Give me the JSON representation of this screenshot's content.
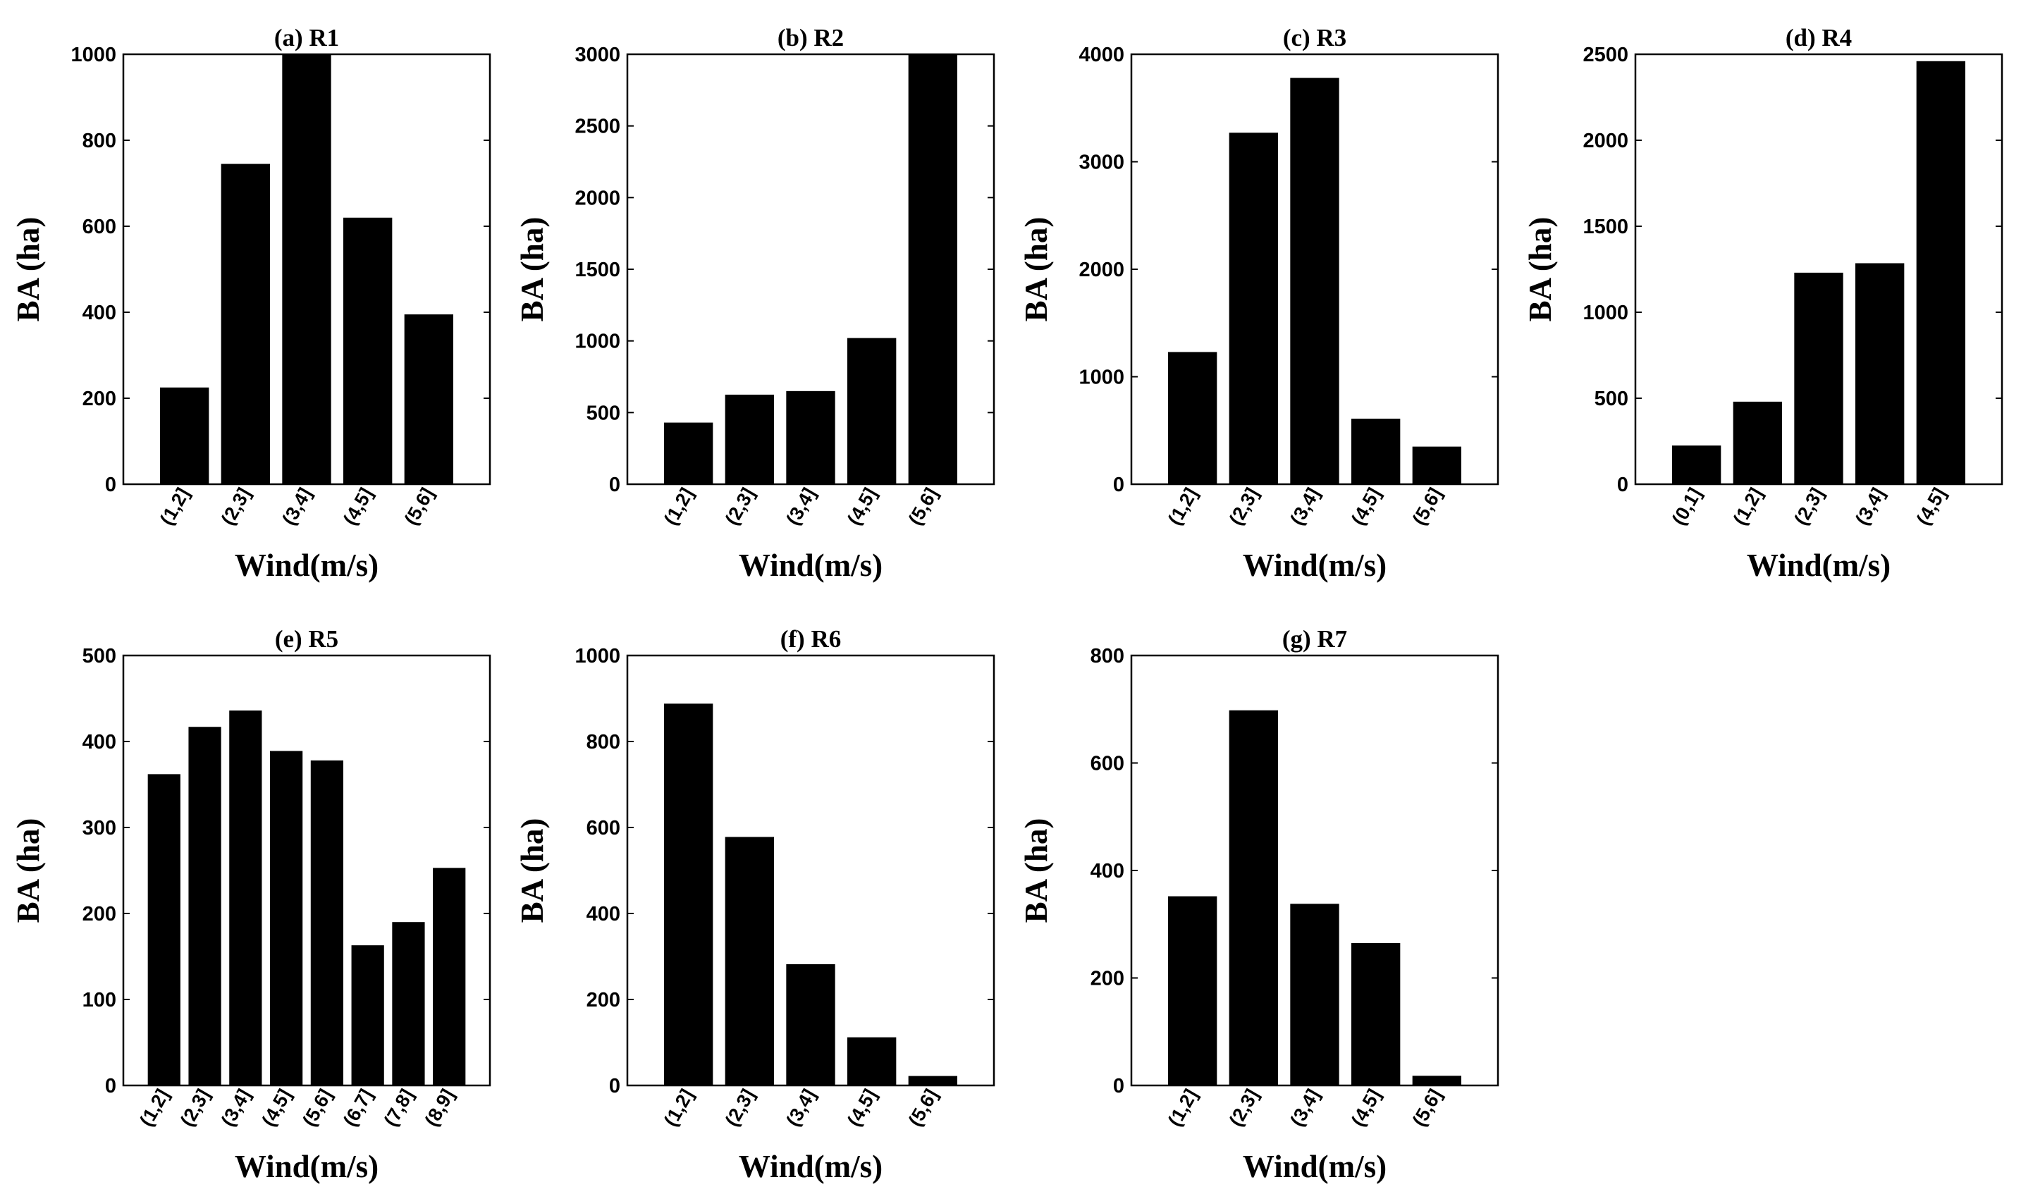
{
  "chart_data": [
    {
      "type": "bar",
      "title": "(a) R1",
      "xlabel": "Wind(m/s)",
      "ylabel": "BA (ha)",
      "ylim": [
        0,
        1000
      ],
      "yticks": [
        0,
        200,
        400,
        600,
        800,
        1000
      ],
      "categories": [
        "(1,2]",
        "(2,3]",
        "(3,4]",
        "(4,5]",
        "(5,6]"
      ],
      "values": [
        225,
        745,
        1000,
        620,
        395
      ]
    },
    {
      "type": "bar",
      "title": "(b) R2",
      "xlabel": "Wind(m/s)",
      "ylabel": "BA (ha)",
      "ylim": [
        0,
        3000
      ],
      "yticks": [
        0,
        500,
        1000,
        1500,
        2000,
        2500,
        3000
      ],
      "categories": [
        "(1,2]",
        "(2,3]",
        "(3,4]",
        "(4,5]",
        "(5,6]"
      ],
      "values": [
        430,
        625,
        650,
        1020,
        3000
      ]
    },
    {
      "type": "bar",
      "title": "(c) R3",
      "xlabel": "Wind(m/s)",
      "ylabel": "BA (ha)",
      "ylim": [
        0,
        4000
      ],
      "yticks": [
        0,
        1000,
        2000,
        3000,
        4000
      ],
      "categories": [
        "(1,2]",
        "(2,3]",
        "(3,4]",
        "(4,5]",
        "(5,6]"
      ],
      "values": [
        1230,
        3270,
        3780,
        610,
        350
      ]
    },
    {
      "type": "bar",
      "title": "(d) R4",
      "xlabel": "Wind(m/s)",
      "ylabel": "BA (ha)",
      "ylim": [
        0,
        2500
      ],
      "yticks": [
        0,
        500,
        1000,
        1500,
        2000,
        2500
      ],
      "categories": [
        "(0,1]",
        "(1,2]",
        "(2,3]",
        "(3,4]",
        "(4,5]"
      ],
      "values": [
        225,
        480,
        1230,
        1285,
        2460
      ]
    },
    {
      "type": "bar",
      "title": "(e) R5",
      "xlabel": "Wind(m/s)",
      "ylabel": "BA (ha)",
      "ylim": [
        0,
        500
      ],
      "yticks": [
        0,
        100,
        200,
        300,
        400,
        500
      ],
      "categories": [
        "(1,2]",
        "(2,3]",
        "(3,4]",
        "(4,5]",
        "(5,6]",
        "(6,7]",
        "(7,8]",
        "(8,9]"
      ],
      "values": [
        362,
        417,
        436,
        389,
        378,
        163,
        190,
        253
      ]
    },
    {
      "type": "bar",
      "title": "(f) R6",
      "xlabel": "Wind(m/s)",
      "ylabel": "BA (ha)",
      "ylim": [
        0,
        1000
      ],
      "yticks": [
        0,
        200,
        400,
        600,
        800,
        1000
      ],
      "categories": [
        "(1,2]",
        "(2,3]",
        "(3,4]",
        "(4,5]",
        "(5,6]"
      ],
      "values": [
        888,
        578,
        282,
        112,
        22
      ]
    },
    {
      "type": "bar",
      "title": "(g) R7",
      "xlabel": "Wind(m/s)",
      "ylabel": "BA (ha)",
      "ylim": [
        0,
        800
      ],
      "yticks": [
        0,
        200,
        400,
        600,
        800
      ],
      "categories": [
        "(1,2]",
        "(2,3]",
        "(3,4]",
        "(4,5]",
        "(5,6]"
      ],
      "values": [
        352,
        698,
        338,
        265,
        18
      ]
    }
  ]
}
